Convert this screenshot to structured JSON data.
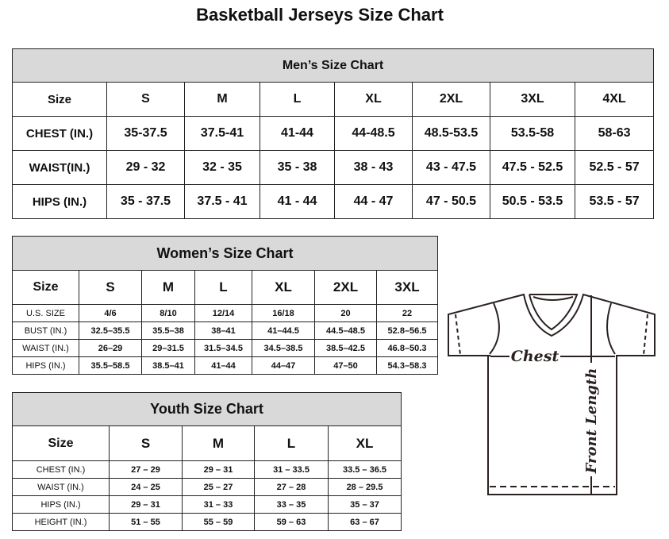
{
  "title": "Basketball Jerseys Size Chart",
  "men": {
    "heading": "Men’s Size Chart",
    "header": [
      "Size",
      "S",
      "M",
      "L",
      "XL",
      "2XL",
      "3XL",
      "4XL"
    ],
    "rows": [
      [
        "CHEST (IN.)",
        "35-37.5",
        "37.5-41",
        "41-44",
        "44-48.5",
        "48.5-53.5",
        "53.5-58",
        "58-63"
      ],
      [
        "WAIST(IN.)",
        "29 - 32",
        "32 - 35",
        "35 - 38",
        "38 - 43",
        "43 - 47.5",
        "47.5 - 52.5",
        "52.5 - 57"
      ],
      [
        "HIPS (IN.)",
        "35 - 37.5",
        "37.5 - 41",
        "41 - 44",
        "44 - 47",
        "47 - 50.5",
        "50.5 - 53.5",
        "53.5 - 57"
      ]
    ]
  },
  "women": {
    "heading": "Women’s Size Chart",
    "header": [
      "Size",
      "S",
      "M",
      "L",
      "XL",
      "2XL",
      "3XL"
    ],
    "rows": [
      [
        "U.S.  SIZE",
        "4/6",
        "8/10",
        "12/14",
        "16/18",
        "20",
        "22"
      ],
      [
        "BUST  (IN.)",
        "32.5–35.5",
        "35.5–38",
        "38–41",
        "41–44.5",
        "44.5–48.5",
        "52.8–56.5"
      ],
      [
        "WAIST  (IN.)",
        "26–29",
        "29–31.5",
        "31.5–34.5",
        "34.5–38.5",
        "38.5–42.5",
        "46.8–50.3"
      ],
      [
        "HIPS  (IN.)",
        "35.5–58.5",
        "38.5–41",
        "41–44",
        "44–47",
        "47–50",
        "54.3–58.3"
      ]
    ]
  },
  "youth": {
    "heading": "Youth Size Chart",
    "header": [
      "Size",
      "S",
      "M",
      "L",
      "XL"
    ],
    "rows": [
      [
        "CHEST  (IN.)",
        "27  –  29",
        "29  –  31",
        "31  –  33.5",
        "33.5  –  36.5"
      ],
      [
        "WAIST  (IN.)",
        "24  –  25",
        "25  –  27",
        "27  –  28",
        "28  –  29.5"
      ],
      [
        "HIPS  (IN.)",
        "29  –  31",
        "31  –  33",
        "33  –  35",
        "35  –  37"
      ],
      [
        "HEIGHT  (IN.)",
        "51  –  55",
        "55  –  59",
        "59  –  63",
        "63  –  67"
      ]
    ]
  },
  "diagram": {
    "chest_label": "Chest",
    "length_label": "Front Length"
  },
  "colors": {
    "header_bg": "#d9d9d9",
    "line": "#2a2220"
  }
}
